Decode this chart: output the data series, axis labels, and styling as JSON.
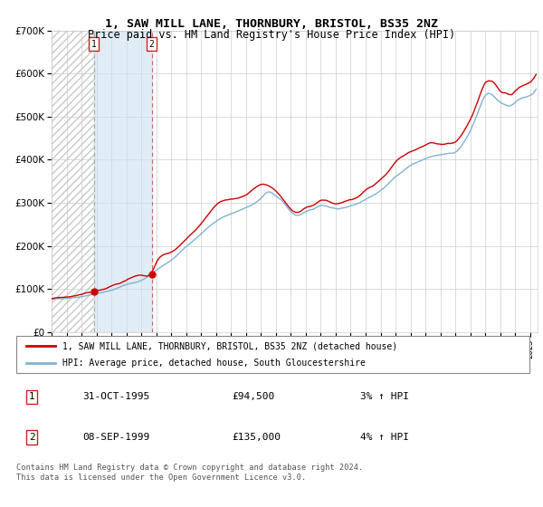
{
  "title": "1, SAW MILL LANE, THORNBURY, BRISTOL, BS35 2NZ",
  "subtitle": "Price paid vs. HM Land Registry's House Price Index (HPI)",
  "legend_entry1": "1, SAW MILL LANE, THORNBURY, BRISTOL, BS35 2NZ (detached house)",
  "legend_entry2": "HPI: Average price, detached house, South Gloucestershire",
  "sale1_date_str": "31-OCT-1995",
  "sale1_price": 94500,
  "sale1_price_str": "£94,500",
  "sale1_label": "3% ↑ HPI",
  "sale2_date_str": "08-SEP-1999",
  "sale2_price": 135000,
  "sale2_price_str": "£135,000",
  "sale2_label": "4% ↑ HPI",
  "footnote": "Contains HM Land Registry data © Crown copyright and database right 2024.\nThis data is licensed under the Open Government Licence v3.0.",
  "price_color": "#cc0000",
  "hpi_color": "#7fb3d3",
  "background_color": "#ffffff",
  "ylim": [
    0,
    700000
  ],
  "yticks": [
    0,
    100000,
    200000,
    300000,
    400000,
    500000,
    600000,
    700000
  ],
  "sale1_x": 1995.83,
  "sale2_x": 1999.69,
  "xmin": 1993.0,
  "xmax": 2025.5
}
